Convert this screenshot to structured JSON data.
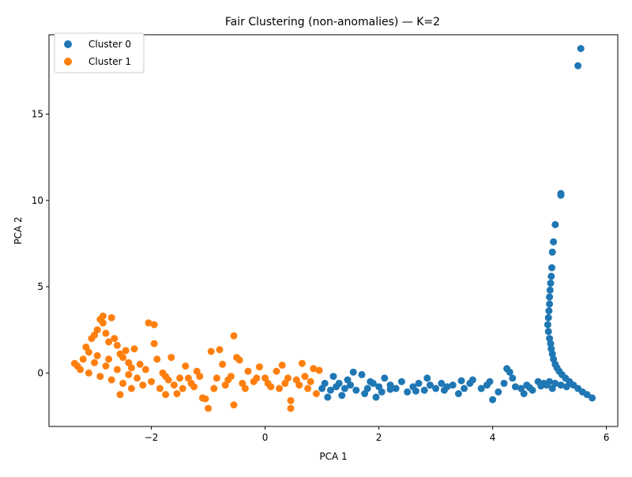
{
  "chart_data": {
    "type": "scatter",
    "title": "Fair Clustering (non-anomalies) — K=2",
    "xlabel": "PCA 1",
    "ylabel": "PCA 2",
    "xlim": [
      -3.8,
      6.2
    ],
    "ylim": [
      -3.1,
      19.6
    ],
    "xticks": [
      -2,
      0,
      2,
      4,
      6
    ],
    "yticks": [
      0,
      5,
      10,
      15
    ],
    "grid": false,
    "legend_position": "upper-left",
    "series": [
      {
        "name": "Cluster 0",
        "color": "#1f77b4",
        "points": [
          [
            5.55,
            18.8
          ],
          [
            5.5,
            17.8
          ],
          [
            5.2,
            10.4
          ],
          [
            5.2,
            10.3
          ],
          [
            5.1,
            8.6
          ],
          [
            5.07,
            7.6
          ],
          [
            5.05,
            7.0
          ],
          [
            5.04,
            6.1
          ],
          [
            5.03,
            5.6
          ],
          [
            5.02,
            5.2
          ],
          [
            5.01,
            4.8
          ],
          [
            5.0,
            4.4
          ],
          [
            5.0,
            4.0
          ],
          [
            4.99,
            3.6
          ],
          [
            4.98,
            3.2
          ],
          [
            4.97,
            2.8
          ],
          [
            4.98,
            2.4
          ],
          [
            5.0,
            2.0
          ],
          [
            5.02,
            1.7
          ],
          [
            5.03,
            1.4
          ],
          [
            5.05,
            1.1
          ],
          [
            5.07,
            0.8
          ],
          [
            5.1,
            0.5
          ],
          [
            5.13,
            0.3
          ],
          [
            5.17,
            0.1
          ],
          [
            5.22,
            -0.1
          ],
          [
            5.28,
            -0.3
          ],
          [
            5.35,
            -0.5
          ],
          [
            5.42,
            -0.7
          ],
          [
            5.5,
            -0.9
          ],
          [
            5.58,
            -1.1
          ],
          [
            5.66,
            -1.25
          ],
          [
            5.75,
            -1.45
          ],
          [
            5.1,
            -0.6
          ],
          [
            5.2,
            -0.7
          ],
          [
            5.3,
            -0.8
          ],
          [
            5.0,
            -0.5
          ],
          [
            4.9,
            -0.6
          ],
          [
            4.95,
            -0.7
          ],
          [
            5.05,
            -0.9
          ],
          [
            4.25,
            0.25
          ],
          [
            4.3,
            0.05
          ],
          [
            4.5,
            -0.9
          ],
          [
            4.55,
            -1.2
          ],
          [
            4.6,
            -0.7
          ],
          [
            4.4,
            -0.8
          ],
          [
            4.2,
            -0.6
          ],
          [
            4.1,
            -1.1
          ],
          [
            4.0,
            -1.55
          ],
          [
            4.7,
            -1.0
          ],
          [
            4.8,
            -0.5
          ],
          [
            3.9,
            -0.7
          ],
          [
            3.8,
            -0.9
          ],
          [
            3.6,
            -0.6
          ],
          [
            3.5,
            -0.9
          ],
          [
            3.4,
            -1.2
          ],
          [
            3.3,
            -0.7
          ],
          [
            3.2,
            -0.8
          ],
          [
            3.1,
            -0.6
          ],
          [
            3.0,
            -0.9
          ],
          [
            2.9,
            -0.7
          ],
          [
            2.8,
            -1.0
          ],
          [
            2.7,
            -0.6
          ],
          [
            2.6,
            -0.8
          ],
          [
            2.5,
            -1.1
          ],
          [
            2.4,
            -0.5
          ],
          [
            2.3,
            -0.9
          ],
          [
            2.2,
            -0.7
          ],
          [
            2.1,
            -0.3
          ],
          [
            2.0,
            -0.8
          ],
          [
            1.95,
            -1.4
          ],
          [
            1.9,
            -0.6
          ],
          [
            1.8,
            -0.9
          ],
          [
            1.7,
            -0.1
          ],
          [
            1.6,
            -1.0
          ],
          [
            1.55,
            0.05
          ],
          [
            1.5,
            -0.7
          ],
          [
            1.4,
            -0.9
          ],
          [
            1.35,
            -1.3
          ],
          [
            1.3,
            -0.6
          ],
          [
            1.25,
            -0.8
          ],
          [
            1.2,
            -0.2
          ],
          [
            1.15,
            -1.0
          ],
          [
            1.1,
            -1.4
          ],
          [
            1.05,
            -0.6
          ],
          [
            1.0,
            -0.9
          ],
          [
            3.65,
            -0.4
          ],
          [
            2.85,
            -0.3
          ],
          [
            2.2,
            -0.95
          ],
          [
            1.75,
            -1.2
          ],
          [
            3.15,
            -1.0
          ],
          [
            4.35,
            -0.3
          ],
          [
            3.95,
            -0.5
          ],
          [
            2.05,
            -1.1
          ],
          [
            1.45,
            -0.4
          ],
          [
            2.65,
            -1.05
          ],
          [
            3.45,
            -0.45
          ],
          [
            4.65,
            -0.85
          ],
          [
            4.85,
            -0.75
          ],
          [
            1.85,
            -0.5
          ]
        ]
      },
      {
        "name": "Cluster 1",
        "color": "#ff7f0e",
        "points": [
          [
            -3.35,
            0.55
          ],
          [
            -3.3,
            0.4
          ],
          [
            -3.2,
            0.8
          ],
          [
            -3.15,
            1.5
          ],
          [
            -3.1,
            1.2
          ],
          [
            -3.05,
            2.0
          ],
          [
            -3.0,
            2.2
          ],
          [
            -2.95,
            2.5
          ],
          [
            -2.9,
            3.1
          ],
          [
            -2.85,
            2.9
          ],
          [
            -2.85,
            3.3
          ],
          [
            -2.8,
            2.3
          ],
          [
            -2.75,
            1.8
          ],
          [
            -2.7,
            3.2
          ],
          [
            -2.65,
            2.0
          ],
          [
            -2.6,
            1.6
          ],
          [
            -2.55,
            1.1
          ],
          [
            -2.5,
            0.9
          ],
          [
            -2.45,
            1.3
          ],
          [
            -2.4,
            0.6
          ],
          [
            -2.3,
            1.4
          ],
          [
            -2.2,
            0.5
          ],
          [
            -2.1,
            0.2
          ],
          [
            -2.05,
            2.9
          ],
          [
            -1.95,
            2.8
          ],
          [
            -1.95,
            1.7
          ],
          [
            -1.9,
            0.8
          ],
          [
            -1.8,
            0.0
          ],
          [
            -1.7,
            -0.4
          ],
          [
            -1.65,
            0.9
          ],
          [
            -1.55,
            -1.2
          ],
          [
            -1.5,
            -0.3
          ],
          [
            -1.4,
            0.4
          ],
          [
            -1.3,
            -0.6
          ],
          [
            -1.2,
            0.1
          ],
          [
            -1.1,
            -1.45
          ],
          [
            -1.05,
            -1.5
          ],
          [
            -1.0,
            -2.05
          ],
          [
            -0.95,
            1.25
          ],
          [
            -0.8,
            1.35
          ],
          [
            -0.75,
            0.5
          ],
          [
            -0.6,
            -0.2
          ],
          [
            -0.55,
            2.15
          ],
          [
            -0.55,
            -1.85
          ],
          [
            -0.5,
            0.9
          ],
          [
            -0.45,
            0.75
          ],
          [
            -0.3,
            0.1
          ],
          [
            -0.2,
            -0.5
          ],
          [
            -0.1,
            0.35
          ],
          [
            0.0,
            -0.3
          ],
          [
            0.1,
            -0.8
          ],
          [
            0.2,
            0.1
          ],
          [
            0.3,
            0.45
          ],
          [
            0.35,
            -0.6
          ],
          [
            0.45,
            -1.6
          ],
          [
            0.45,
            -2.05
          ],
          [
            0.55,
            -0.4
          ],
          [
            0.65,
            0.55
          ],
          [
            0.75,
            -0.9
          ],
          [
            0.85,
            0.25
          ],
          [
            0.95,
            0.15
          ],
          [
            0.9,
            -1.2
          ],
          [
            -3.25,
            0.2
          ],
          [
            -3.1,
            0.0
          ],
          [
            -3.0,
            0.6
          ],
          [
            -2.9,
            -0.2
          ],
          [
            -2.8,
            0.4
          ],
          [
            -2.7,
            -0.4
          ],
          [
            -2.6,
            0.2
          ],
          [
            -2.5,
            -0.6
          ],
          [
            -2.4,
            -0.1
          ],
          [
            -2.35,
            -0.9
          ],
          [
            -2.25,
            -0.3
          ],
          [
            -2.15,
            -0.7
          ],
          [
            -2.0,
            -0.5
          ],
          [
            -1.85,
            -0.9
          ],
          [
            -1.75,
            -0.2
          ],
          [
            -1.6,
            -0.7
          ],
          [
            -1.45,
            -0.9
          ],
          [
            -1.35,
            -0.3
          ],
          [
            -1.25,
            -0.8
          ],
          [
            -1.15,
            -0.2
          ],
          [
            -0.9,
            -0.9
          ],
          [
            -0.85,
            -0.3
          ],
          [
            -0.7,
            -0.7
          ],
          [
            -0.65,
            -0.4
          ],
          [
            -0.4,
            -0.6
          ],
          [
            -0.35,
            -0.9
          ],
          [
            -0.15,
            -0.3
          ],
          [
            0.05,
            -0.6
          ],
          [
            0.25,
            -0.9
          ],
          [
            0.4,
            -0.3
          ],
          [
            0.6,
            -0.7
          ],
          [
            0.7,
            -0.2
          ],
          [
            0.8,
            -0.5
          ],
          [
            -2.55,
            -1.25
          ],
          [
            -1.75,
            -1.25
          ],
          [
            -2.95,
            1.0
          ],
          [
            -2.75,
            0.8
          ],
          [
            -2.35,
            0.3
          ]
        ]
      }
    ]
  }
}
